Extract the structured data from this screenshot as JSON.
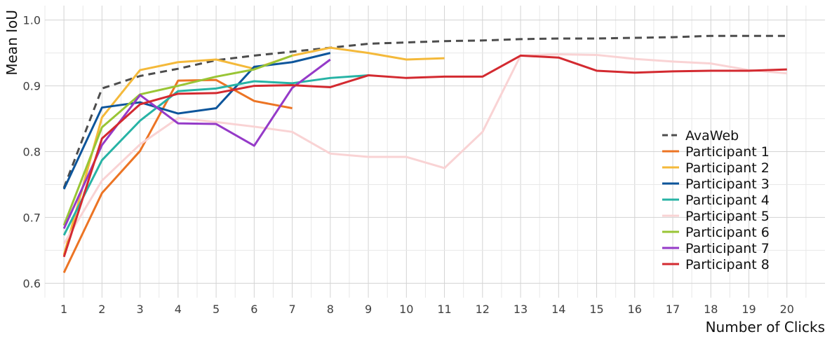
{
  "chart_data": {
    "type": "line",
    "title": "",
    "xlabel": "Number of Clicks",
    "ylabel": "Mean IoU",
    "xlim": [
      0.5,
      21
    ],
    "ylim": [
      0.578,
      1.022
    ],
    "xticks": [
      1,
      2,
      3,
      4,
      5,
      6,
      7,
      8,
      9,
      10,
      11,
      12,
      13,
      14,
      15,
      16,
      17,
      18,
      19,
      20
    ],
    "yticks": [
      0.6,
      0.7,
      0.8,
      0.9,
      1.0
    ],
    "ytick_labels": [
      "0.6",
      "0.7",
      "0.8",
      "0.9",
      "1.0"
    ],
    "grid": true,
    "legend_position": "right",
    "series": [
      {
        "name": "AvaWeb",
        "color": "#4d4d4d",
        "dash": true,
        "x": [
          1,
          2,
          3,
          4,
          5,
          6,
          7,
          8,
          9,
          10,
          11,
          12,
          13,
          14,
          15,
          16,
          17,
          18,
          19,
          20
        ],
        "values": [
          0.745,
          0.896,
          0.915,
          0.926,
          0.939,
          0.946,
          0.952,
          0.958,
          0.964,
          0.966,
          0.968,
          0.969,
          0.971,
          0.972,
          0.972,
          0.973,
          0.974,
          0.976,
          0.976,
          0.976
        ]
      },
      {
        "name": "Participant 1",
        "color": "#ec7424",
        "dash": false,
        "x": [
          1,
          2,
          3,
          4,
          5,
          6,
          7
        ],
        "values": [
          0.616,
          0.737,
          0.801,
          0.908,
          0.909,
          0.877,
          0.866
        ]
      },
      {
        "name": "Participant 2",
        "color": "#f4b93a",
        "dash": false,
        "x": [
          1,
          2,
          3,
          4,
          5,
          6,
          7,
          8,
          9,
          10,
          11
        ],
        "values": [
          0.643,
          0.852,
          0.924,
          0.936,
          0.94,
          0.926,
          0.946,
          0.958,
          0.95,
          0.94,
          0.942
        ]
      },
      {
        "name": "Participant 3",
        "color": "#0d559b",
        "dash": false,
        "x": [
          1,
          2,
          3,
          4,
          5,
          6,
          7,
          8
        ],
        "values": [
          0.743,
          0.867,
          0.875,
          0.858,
          0.866,
          0.929,
          0.936,
          0.95
        ]
      },
      {
        "name": "Participant 4",
        "color": "#27b3a5",
        "dash": false,
        "x": [
          1,
          2,
          3,
          4,
          5,
          6,
          7,
          8,
          9
        ],
        "values": [
          0.673,
          0.787,
          0.847,
          0.892,
          0.896,
          0.907,
          0.904,
          0.912,
          0.916
        ]
      },
      {
        "name": "Participant 5",
        "color": "#f9d3d4",
        "dash": false,
        "x": [
          1,
          2,
          3,
          4,
          5,
          6,
          7,
          8,
          9,
          10,
          11,
          12,
          13,
          14,
          15,
          16,
          17,
          18,
          19,
          20
        ],
        "values": [
          0.66,
          0.756,
          0.811,
          0.851,
          0.845,
          0.838,
          0.83,
          0.797,
          0.792,
          0.792,
          0.775,
          0.83,
          0.946,
          0.948,
          0.947,
          0.941,
          0.937,
          0.934,
          0.924,
          0.919
        ]
      },
      {
        "name": "Participant 6",
        "color": "#99c535",
        "dash": false,
        "x": [
          1,
          2,
          3,
          4,
          5,
          6,
          7
        ],
        "values": [
          0.688,
          0.837,
          0.887,
          0.9,
          0.914,
          0.925,
          0.946
        ]
      },
      {
        "name": "Participant 7",
        "color": "#953ac8",
        "dash": false,
        "x": [
          1,
          2,
          3,
          4,
          5,
          6,
          7,
          8
        ],
        "values": [
          0.683,
          0.81,
          0.886,
          0.843,
          0.842,
          0.809,
          0.897,
          0.94
        ]
      },
      {
        "name": "Participant 8",
        "color": "#d32a30",
        "dash": false,
        "x": [
          1,
          2,
          3,
          4,
          5,
          6,
          7,
          8,
          9,
          10,
          11,
          12,
          13,
          14,
          15,
          16,
          17,
          18,
          19,
          20
        ],
        "values": [
          0.64,
          0.82,
          0.872,
          0.888,
          0.889,
          0.9,
          0.901,
          0.898,
          0.916,
          0.912,
          0.914,
          0.914,
          0.946,
          0.943,
          0.923,
          0.92,
          0.922,
          0.923,
          0.923,
          0.925
        ]
      }
    ]
  }
}
